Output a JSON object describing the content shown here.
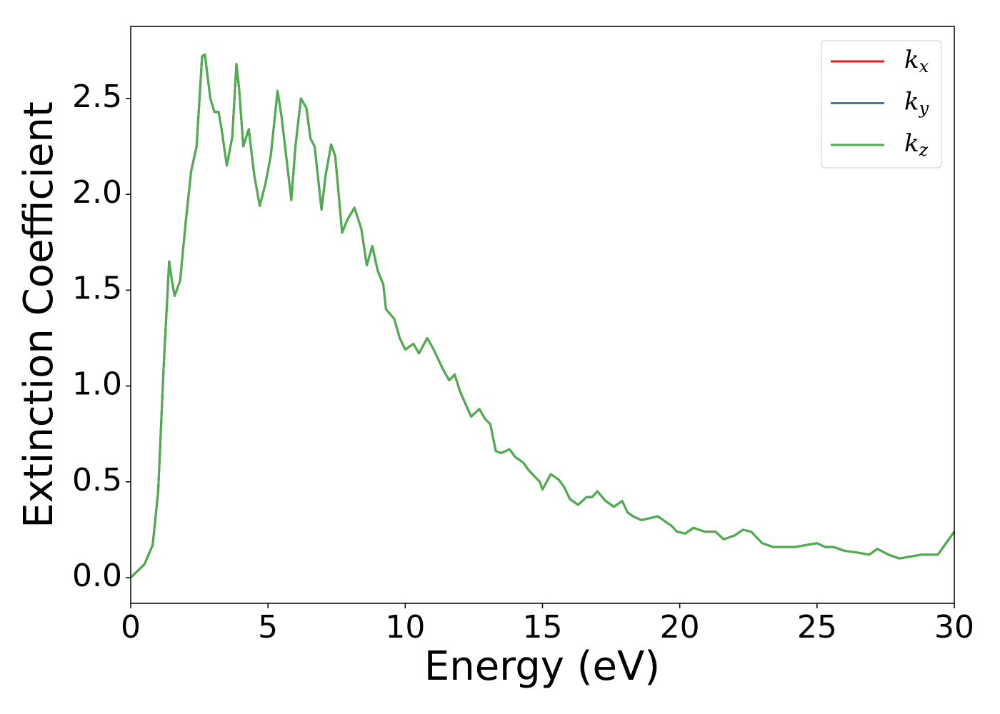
{
  "chart_data": {
    "type": "line",
    "xlabel": "Energy (eV)",
    "ylabel": "Extinction Coefficient",
    "xlim": [
      0,
      30
    ],
    "ylim": [
      -0.134,
      2.876
    ],
    "xticks": [
      0,
      5,
      10,
      15,
      20,
      25,
      30
    ],
    "yticks": [
      {
        "value": 0,
        "label": "0.0"
      },
      0.5,
      {
        "value": 1,
        "label": "1.0"
      },
      1.5,
      {
        "value": 2,
        "label": "2.0"
      },
      2.5
    ],
    "legend": "upper right",
    "grid": false,
    "x": [
      0,
      0.5,
      0.8,
      1.0,
      1.2,
      1.4,
      1.5,
      1.6,
      1.8,
      2.0,
      2.2,
      2.4,
      2.6,
      2.7,
      2.9,
      3.05,
      3.2,
      3.3,
      3.5,
      3.7,
      3.85,
      3.95,
      4.1,
      4.3,
      4.5,
      4.7,
      4.9,
      5.1,
      5.35,
      5.5,
      5.85,
      6.0,
      6.2,
      6.4,
      6.55,
      6.7,
      6.95,
      7.1,
      7.3,
      7.45,
      7.7,
      7.9,
      8.15,
      8.4,
      8.6,
      8.8,
      9.0,
      9.2,
      9.3,
      9.6,
      9.8,
      10.0,
      10.3,
      10.5,
      10.8,
      11.0,
      11.4,
      11.6,
      11.8,
      12.0,
      12.4,
      12.7,
      12.9,
      13.1,
      13.3,
      13.5,
      13.8,
      14.0,
      14.3,
      14.5,
      14.9,
      15.0,
      15.3,
      15.6,
      15.8,
      16.0,
      16.3,
      16.6,
      16.8,
      17.0,
      17.3,
      17.6,
      17.9,
      18.1,
      18.3,
      18.6,
      18.9,
      19.2,
      19.5,
      19.7,
      19.9,
      20.2,
      20.5,
      20.9,
      21.3,
      21.6,
      22.0,
      22.3,
      22.6,
      23.0,
      23.4,
      23.8,
      24.2,
      24.6,
      25.0,
      25.3,
      25.6,
      26.0,
      26.5,
      26.9,
      27.2,
      27.6,
      28.0,
      28.4,
      28.8,
      29.4,
      30.0
    ],
    "series": [
      {
        "name": "kx",
        "color": "#e41a1c",
        "values": [
          0,
          0.07,
          0.17,
          0.45,
          1.1,
          1.65,
          1.55,
          1.47,
          1.55,
          1.85,
          2.12,
          2.25,
          2.72,
          2.73,
          2.5,
          2.43,
          2.43,
          2.35,
          2.15,
          2.3,
          2.68,
          2.55,
          2.25,
          2.34,
          2.1,
          1.94,
          2.05,
          2.2,
          2.54,
          2.4,
          1.97,
          2.25,
          2.5,
          2.45,
          2.29,
          2.25,
          1.92,
          2.1,
          2.26,
          2.2,
          1.8,
          1.87,
          1.93,
          1.82,
          1.63,
          1.73,
          1.6,
          1.53,
          1.4,
          1.35,
          1.25,
          1.19,
          1.22,
          1.17,
          1.25,
          1.2,
          1.08,
          1.03,
          1.06,
          0.97,
          0.84,
          0.88,
          0.83,
          0.8,
          0.66,
          0.65,
          0.67,
          0.63,
          0.6,
          0.56,
          0.5,
          0.46,
          0.54,
          0.51,
          0.47,
          0.41,
          0.38,
          0.42,
          0.42,
          0.45,
          0.4,
          0.37,
          0.4,
          0.34,
          0.32,
          0.3,
          0.31,
          0.32,
          0.29,
          0.27,
          0.24,
          0.23,
          0.26,
          0.24,
          0.24,
          0.2,
          0.22,
          0.25,
          0.24,
          0.18,
          0.16,
          0.16,
          0.16,
          0.17,
          0.18,
          0.16,
          0.16,
          0.14,
          0.13,
          0.12,
          0.15,
          0.12,
          0.1,
          0.11,
          0.12,
          0.12,
          0.24
        ]
      },
      {
        "name": "ky",
        "color": "#377eb8",
        "values": [
          0,
          0.07,
          0.17,
          0.45,
          1.1,
          1.65,
          1.55,
          1.47,
          1.55,
          1.85,
          2.12,
          2.25,
          2.72,
          2.73,
          2.5,
          2.43,
          2.43,
          2.35,
          2.15,
          2.3,
          2.68,
          2.55,
          2.25,
          2.34,
          2.1,
          1.94,
          2.05,
          2.2,
          2.54,
          2.4,
          1.97,
          2.25,
          2.5,
          2.45,
          2.29,
          2.25,
          1.92,
          2.1,
          2.26,
          2.2,
          1.8,
          1.87,
          1.93,
          1.82,
          1.63,
          1.73,
          1.6,
          1.53,
          1.4,
          1.35,
          1.25,
          1.19,
          1.22,
          1.17,
          1.25,
          1.2,
          1.08,
          1.03,
          1.06,
          0.97,
          0.84,
          0.88,
          0.83,
          0.8,
          0.66,
          0.65,
          0.67,
          0.63,
          0.6,
          0.56,
          0.5,
          0.46,
          0.54,
          0.51,
          0.47,
          0.41,
          0.38,
          0.42,
          0.42,
          0.45,
          0.4,
          0.37,
          0.4,
          0.34,
          0.32,
          0.3,
          0.31,
          0.32,
          0.29,
          0.27,
          0.24,
          0.23,
          0.26,
          0.24,
          0.24,
          0.2,
          0.22,
          0.25,
          0.24,
          0.18,
          0.16,
          0.16,
          0.16,
          0.17,
          0.18,
          0.16,
          0.16,
          0.14,
          0.13,
          0.12,
          0.15,
          0.12,
          0.1,
          0.11,
          0.12,
          0.12,
          0.24
        ]
      },
      {
        "name": "kz",
        "color": "#4daf4a",
        "values": [
          0,
          0.07,
          0.17,
          0.45,
          1.1,
          1.65,
          1.55,
          1.47,
          1.55,
          1.85,
          2.12,
          2.25,
          2.72,
          2.73,
          2.5,
          2.43,
          2.43,
          2.35,
          2.15,
          2.3,
          2.68,
          2.55,
          2.25,
          2.34,
          2.1,
          1.94,
          2.05,
          2.2,
          2.54,
          2.4,
          1.97,
          2.25,
          2.5,
          2.45,
          2.29,
          2.25,
          1.92,
          2.1,
          2.26,
          2.2,
          1.8,
          1.87,
          1.93,
          1.82,
          1.63,
          1.73,
          1.6,
          1.53,
          1.4,
          1.35,
          1.25,
          1.19,
          1.22,
          1.17,
          1.25,
          1.2,
          1.08,
          1.03,
          1.06,
          0.97,
          0.84,
          0.88,
          0.83,
          0.8,
          0.66,
          0.65,
          0.67,
          0.63,
          0.6,
          0.56,
          0.5,
          0.46,
          0.54,
          0.51,
          0.47,
          0.41,
          0.38,
          0.42,
          0.42,
          0.45,
          0.4,
          0.37,
          0.4,
          0.34,
          0.32,
          0.3,
          0.31,
          0.32,
          0.29,
          0.27,
          0.24,
          0.23,
          0.26,
          0.24,
          0.24,
          0.2,
          0.22,
          0.25,
          0.24,
          0.18,
          0.16,
          0.16,
          0.16,
          0.17,
          0.18,
          0.16,
          0.16,
          0.14,
          0.13,
          0.12,
          0.15,
          0.12,
          0.1,
          0.11,
          0.12,
          0.12,
          0.24
        ]
      }
    ]
  }
}
